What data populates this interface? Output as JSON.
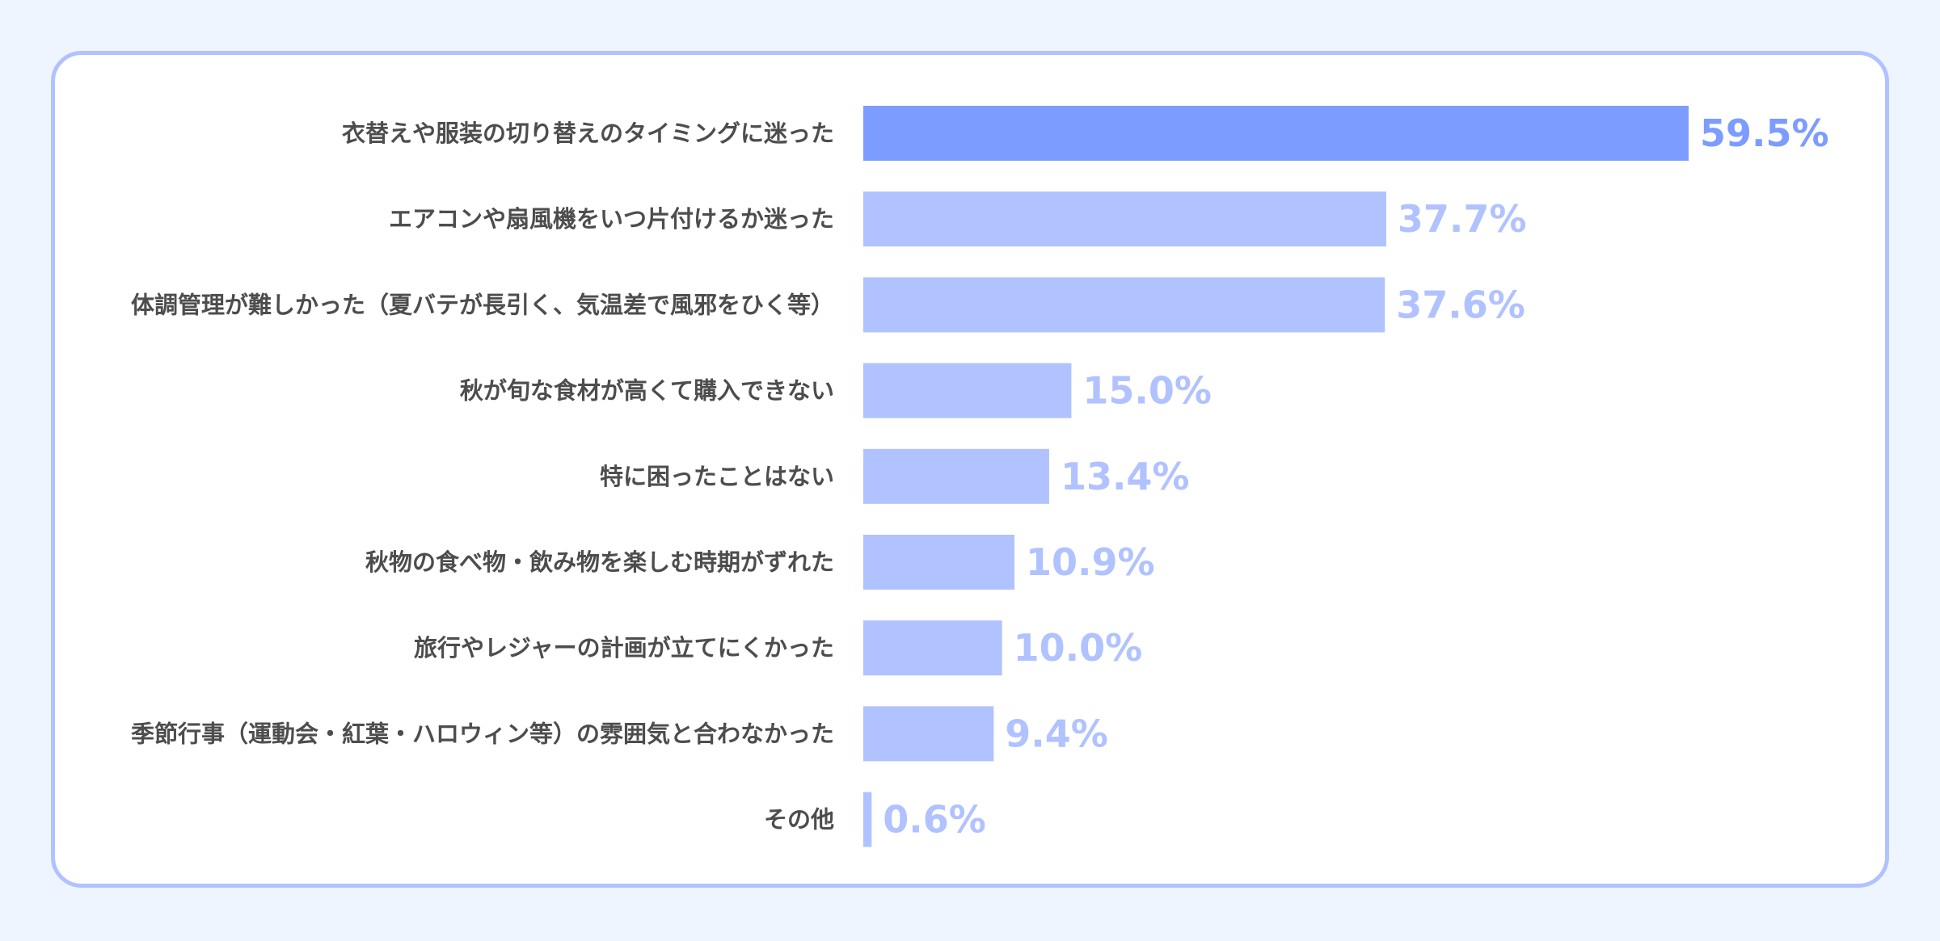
{
  "chart_data": {
    "type": "bar",
    "orientation": "horizontal",
    "categories": [
      "衣替えや服装の切り替えのタイミングに迷った",
      "エアコンや扇風機をいつ片付けるか迷った",
      "体調管理が難しかった（夏バテが長引く、気温差で風邪をひく等）",
      "秋が旬な食材が高くて購入できない",
      "特に困ったことはない",
      "秋物の食べ物・飲み物を楽しむ時期がずれた",
      "旅行やレジャーの計画が立てにくかった",
      "季節行事（運動会・紅葉・ハロウィン等）の雰囲気と合わなかった",
      "その他"
    ],
    "values": [
      59.5,
      37.7,
      37.6,
      15.0,
      13.4,
      10.9,
      10.0,
      9.4,
      0.6
    ],
    "value_labels": [
      "59.5%",
      "37.7%",
      "37.6%",
      "15.0%",
      "13.4%",
      "10.9%",
      "10.0%",
      "9.4%",
      "0.6%"
    ],
    "unit": "%",
    "grid": false,
    "legend": "none",
    "colors": {
      "highlight_bar": "#7c9cff",
      "bar": "#b0c2ff",
      "highlight_label": "#7c9cff",
      "value_label": "#b0c2ff",
      "category_label": "#4d4d4d",
      "background": "#eff5fe",
      "card": "#ffffff",
      "card_border": "#b0c2ff"
    }
  }
}
